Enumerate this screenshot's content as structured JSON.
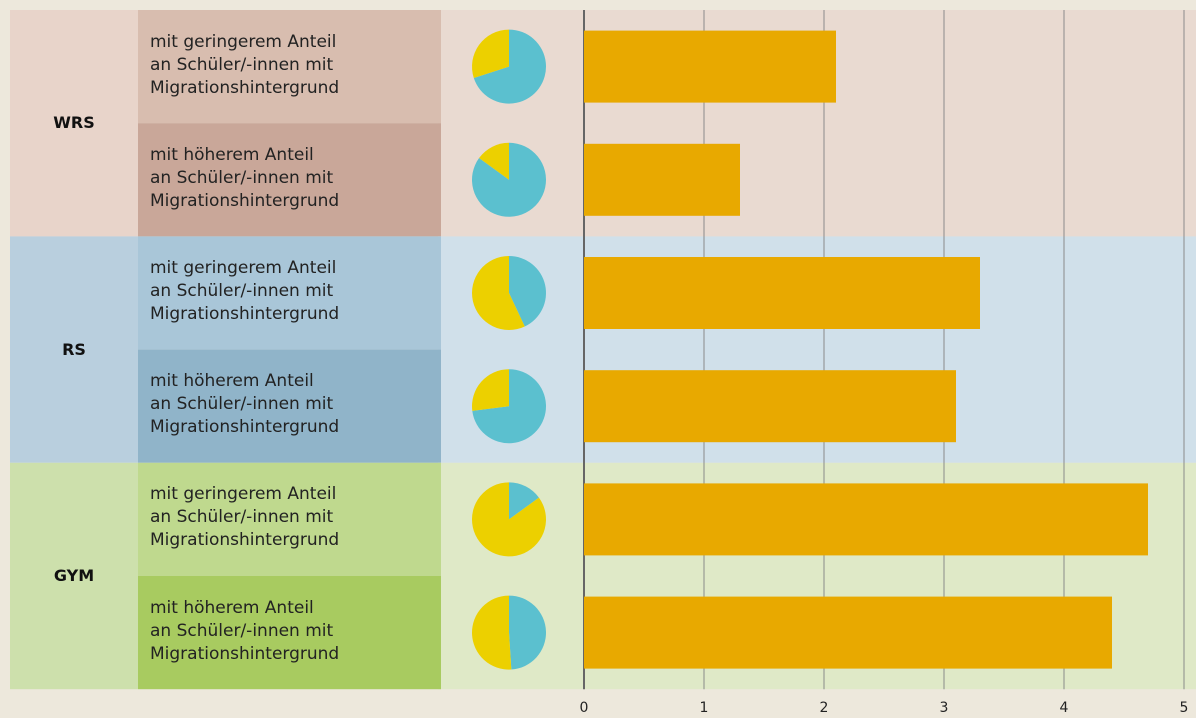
{
  "chart_data": {
    "type": "bar",
    "groups": [
      "WRS",
      "RS",
      "GYM"
    ],
    "categories": [
      "mit geringerem Anteil\nan Schüler/-innen mit\nMigrationshintergrund",
      "mit höherem Anteil\nan Schüler/-innen mit\nMigrationshintergrund",
      "mit geringerem Anteil\nan Schüler/-innen mit\nMigrationshintergrund",
      "mit höherem Anteil\nan Schüler/-innen mit\nMigrationshintergrund",
      "mit geringerem Anteil\nan Schüler/-innen mit\nMigrationshintergrund",
      "mit höherem Anteil\nan Schüler/-innen mit\nMigrationshintergrund"
    ],
    "values": [
      2.1,
      1.3,
      3.3,
      3.1,
      4.7,
      4.4
    ],
    "color": "#e8a900",
    "pie_values": [
      30,
      15,
      57,
      27,
      85,
      51
    ],
    "pie_colors": [
      "#ecd000",
      "#5bc0cf"
    ],
    "xlim": [
      0,
      5
    ],
    "xticks": [
      0,
      1,
      2,
      3,
      4,
      5
    ],
    "grid": true
  }
}
